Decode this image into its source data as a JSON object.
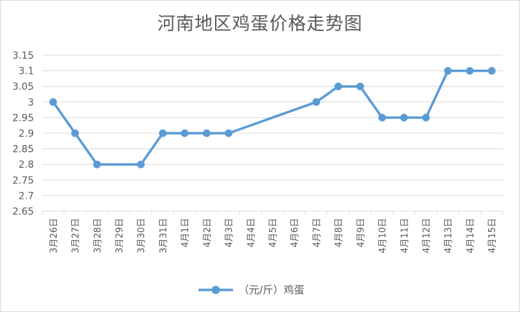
{
  "chart_data": {
    "type": "line",
    "title": "河南地区鸡蛋价格走势图",
    "categories": [
      "3月26日",
      "3月27日",
      "3月28日",
      "3月29日",
      "3月30日",
      "3月31日",
      "4月1日",
      "4月2日",
      "4月3日",
      "4月4日",
      "4月5日",
      "4月6日",
      "4月7日",
      "4月8日",
      "4月9日",
      "4月10日",
      "4月11日",
      "4月12日",
      "4月13日",
      "4月14日",
      "4月15日"
    ],
    "series": [
      {
        "name": "（元/斤）鸡蛋",
        "values": [
          3.0,
          2.9,
          2.8,
          null,
          2.8,
          2.9,
          2.9,
          2.9,
          2.9,
          null,
          null,
          null,
          3.0,
          3.05,
          3.05,
          2.95,
          2.95,
          2.95,
          3.1,
          3.1,
          3.1
        ]
      }
    ],
    "yticks": [
      "2.65",
      "2.7",
      "2.75",
      "2.8",
      "2.85",
      "2.9",
      "2.95",
      "3",
      "3.05",
      "3.1",
      "3.15"
    ],
    "ylim": [
      2.65,
      3.15
    ],
    "grid": true,
    "legend": "bottom",
    "color": "#5b9bd5"
  }
}
